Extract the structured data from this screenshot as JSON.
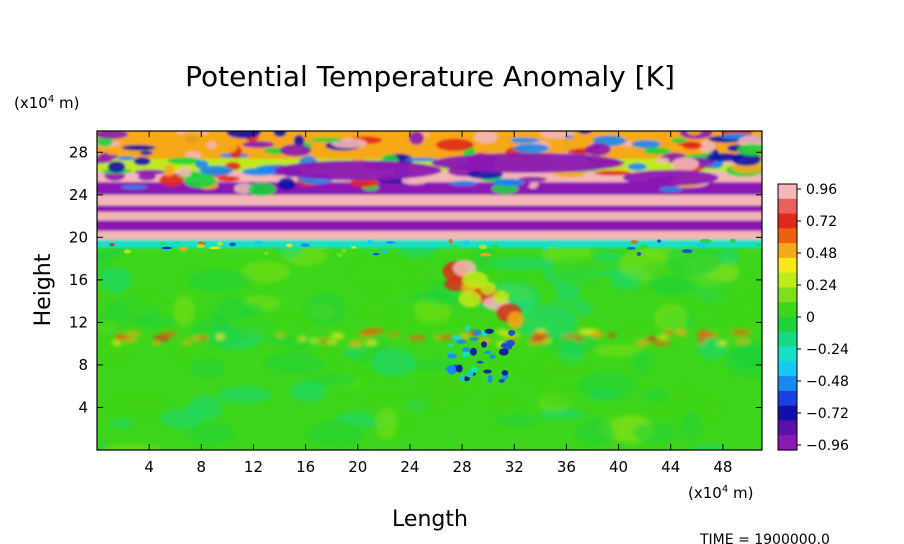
{
  "chart_data": {
    "type": "heatmap",
    "title": "Potential Temperature Anomaly [K]",
    "xlabel": "Length",
    "ylabel": "Height",
    "x_unit_prefix": "(x10",
    "x_unit_exp": "4",
    "x_unit_suffix": " m)",
    "y_unit_prefix": "(x10",
    "y_unit_exp": "4",
    "y_unit_suffix": " m)",
    "xlim": [
      0,
      51
    ],
    "ylim": [
      0,
      30
    ],
    "x_ticks": [
      4,
      8,
      12,
      16,
      20,
      24,
      28,
      32,
      36,
      40,
      44,
      48
    ],
    "y_ticks": [
      4,
      8,
      12,
      16,
      20,
      24,
      28
    ],
    "colorbar": {
      "ticks": [
        "0.96",
        "0.72",
        "0.48",
        "0.24",
        "0",
        "−0.24",
        "−0.48",
        "−0.72",
        "−0.96"
      ],
      "range": [
        -0.96,
        0.96
      ],
      "colors": [
        "#f4b6b6",
        "#e8605a",
        "#e0281c",
        "#ec6010",
        "#f6a818",
        "#f7e81a",
        "#c0ea1a",
        "#7ee01a",
        "#3ed61a",
        "#1ed23c",
        "#18d882",
        "#14e0c8",
        "#18c8f0",
        "#1888f0",
        "#1840e0",
        "#1010a8",
        "#5a10a8",
        "#8c18b4"
      ]
    },
    "field_description": "Layered positive and negative anomaly bands near heights 20-29; weak near-zero field below with a strong positive plume near x=27-33, height 12-18.",
    "footer_label": "TIME",
    "footer_value": "= 1900000.0"
  }
}
